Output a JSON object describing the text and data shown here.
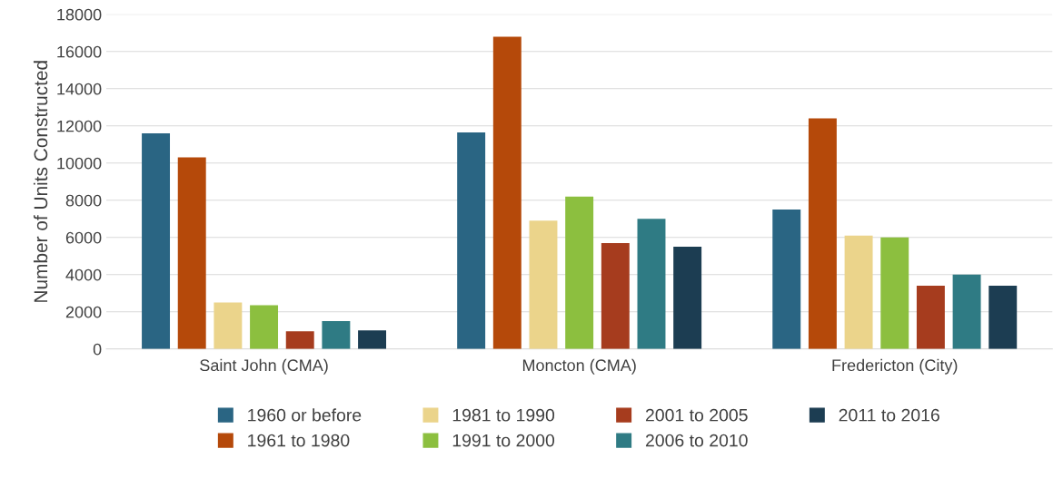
{
  "chart_data": {
    "type": "bar",
    "ylabel": "Number of Units Constructed",
    "categories": [
      "Saint John (CMA)",
      "Moncton (CMA)",
      "Fredericton (City)"
    ],
    "series": [
      {
        "name": "1960 or before",
        "color": "#2a6583",
        "values": [
          11600,
          11650,
          7500
        ]
      },
      {
        "name": "1961 to 1980",
        "color": "#b5490a",
        "values": [
          10300,
          16800,
          12400
        ]
      },
      {
        "name": "1981 to 1990",
        "color": "#ebd48b",
        "values": [
          2500,
          6900,
          6100
        ]
      },
      {
        "name": "1991 to 2000",
        "color": "#8cbf3f",
        "values": [
          2350,
          8200,
          6000
        ]
      },
      {
        "name": "2001 to 2005",
        "color": "#a63c1e",
        "values": [
          950,
          5700,
          3400
        ]
      },
      {
        "name": "2006 to 2010",
        "color": "#2f7b84",
        "values": [
          1500,
          7000,
          4000
        ]
      },
      {
        "name": "2011 to 2016",
        "color": "#1c3d52",
        "values": [
          1000,
          5500,
          3400
        ]
      }
    ],
    "ylim": [
      0,
      18000
    ],
    "yticks": [
      0,
      2000,
      4000,
      6000,
      8000,
      10000,
      12000,
      14000,
      16000,
      18000
    ],
    "grid": "y",
    "legend": "bottom"
  }
}
